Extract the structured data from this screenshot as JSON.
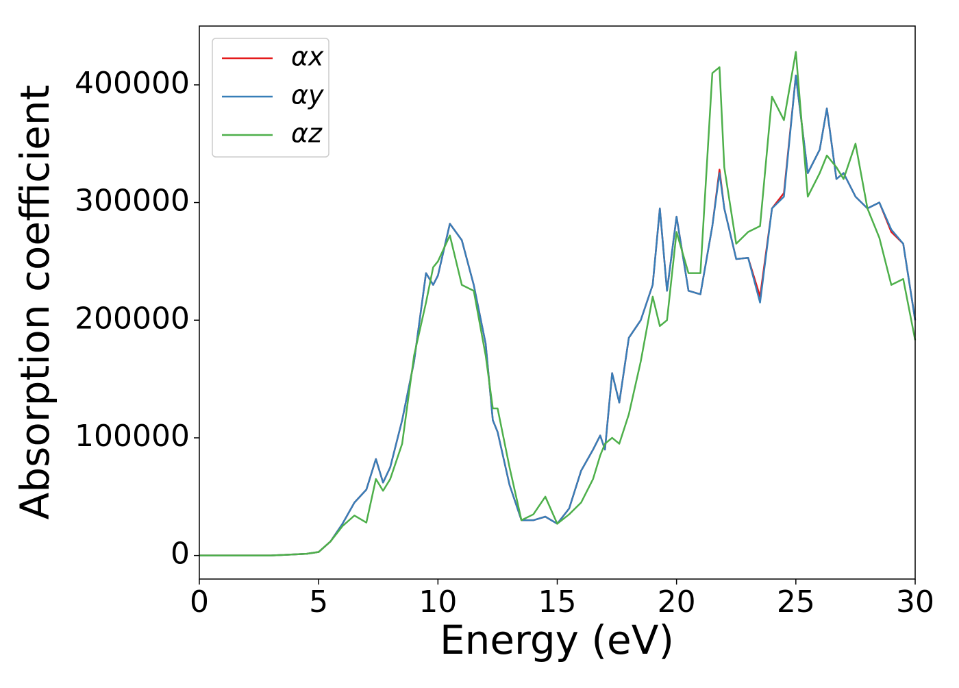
{
  "chart_data": {
    "type": "line",
    "xlabel": "Energy (eV)",
    "ylabel": "Absorption coefficient",
    "x": [
      0,
      1,
      2,
      3,
      4,
      4.5,
      5,
      5.5,
      6,
      6.5,
      7,
      7.4,
      7.7,
      8,
      8.5,
      9,
      9.5,
      9.8,
      10,
      10.5,
      11,
      11.5,
      12,
      12.3,
      12.5,
      13,
      13.5,
      14,
      14.5,
      15,
      15.5,
      16,
      16.5,
      16.8,
      17,
      17.3,
      17.6,
      18,
      18.5,
      19,
      19.3,
      19.6,
      20,
      20.5,
      21,
      21.5,
      21.8,
      22,
      22.5,
      23,
      23.5,
      24,
      24.5,
      25,
      25.5,
      26,
      26.3,
      26.7,
      27,
      27.5,
      28,
      28.5,
      29,
      29.5,
      30
    ],
    "series": [
      {
        "name": "αx",
        "color": "#e41a1c",
        "values": [
          0,
          0,
          0,
          0,
          1000,
          1500,
          3000,
          12000,
          27000,
          45000,
          56000,
          82000,
          62000,
          75000,
          115000,
          165000,
          240000,
          230000,
          238000,
          282000,
          268000,
          230000,
          180000,
          115000,
          105000,
          60000,
          30000,
          30000,
          33000,
          27000,
          40000,
          72000,
          90000,
          102000,
          90000,
          155000,
          130000,
          185000,
          200000,
          230000,
          295000,
          225000,
          288000,
          225000,
          222000,
          280000,
          328000,
          295000,
          252000,
          253000,
          220000,
          295000,
          308000,
          408000,
          325000,
          345000,
          380000,
          320000,
          325000,
          305000,
          295000,
          300000,
          275000,
          265000,
          200000
        ]
      },
      {
        "name": "αy",
        "color": "#377eb8",
        "values": [
          0,
          0,
          0,
          0,
          1000,
          1500,
          3000,
          12000,
          27000,
          45000,
          56000,
          82000,
          62000,
          75000,
          115000,
          165000,
          240000,
          230000,
          238000,
          282000,
          268000,
          230000,
          180000,
          115000,
          105000,
          60000,
          30000,
          30000,
          33000,
          27000,
          40000,
          72000,
          90000,
          102000,
          90000,
          155000,
          130000,
          185000,
          200000,
          230000,
          295000,
          225000,
          288000,
          225000,
          222000,
          280000,
          325000,
          295000,
          252000,
          253000,
          215000,
          295000,
          305000,
          408000,
          325000,
          345000,
          380000,
          320000,
          325000,
          305000,
          295000,
          300000,
          277000,
          265000,
          200000
        ]
      },
      {
        "name": "αz",
        "color": "#4daf4a",
        "values": [
          0,
          0,
          0,
          0,
          1000,
          1500,
          3000,
          12000,
          25000,
          34000,
          28000,
          65000,
          55000,
          65000,
          95000,
          170000,
          215000,
          245000,
          250000,
          272000,
          230000,
          225000,
          170000,
          125000,
          125000,
          75000,
          30000,
          35000,
          50000,
          27000,
          35000,
          45000,
          65000,
          85000,
          95000,
          100000,
          95000,
          120000,
          165000,
          220000,
          195000,
          200000,
          275000,
          240000,
          240000,
          410000,
          415000,
          330000,
          265000,
          275000,
          280000,
          390000,
          370000,
          428000,
          305000,
          325000,
          340000,
          330000,
          320000,
          350000,
          295000,
          270000,
          230000,
          235000,
          183000
        ]
      }
    ],
    "xlim": [
      0,
      30
    ],
    "xticks": [
      0,
      5,
      10,
      15,
      20,
      25,
      30
    ],
    "ylim": [
      -20000,
      450000
    ],
    "yticks": [
      0,
      100000,
      200000,
      300000,
      400000
    ],
    "legend": "upper left"
  }
}
